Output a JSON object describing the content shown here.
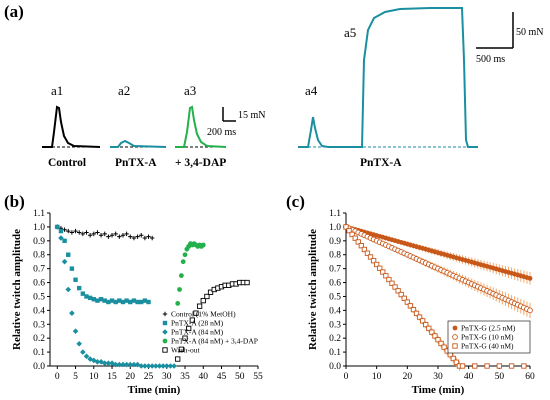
{
  "colors": {
    "control": "#000000",
    "pntxa": "#1a8fa0",
    "dap": "#22b14c",
    "washout": "#000000",
    "pntxg": "#c8581a",
    "pntxg_light": "#f2a86a"
  },
  "panel_a": {
    "label": "(a)",
    "traces": [
      {
        "id": "a1",
        "label": "a1",
        "condition": "Control",
        "color_key": "control",
        "relative_amplitude": 1.0
      },
      {
        "id": "a2",
        "label": "a2",
        "condition": "PnTX-A",
        "color_key": "pntxa",
        "relative_amplitude": 0.12
      },
      {
        "id": "a3",
        "label": "a3",
        "condition": "+ 3,4-DAP",
        "color_key": "dap",
        "relative_amplitude": 0.93
      },
      {
        "id": "a4",
        "label": "a4",
        "condition": "PnTX-A",
        "color_key": "pntxa",
        "relative_amplitude": 0.9
      },
      {
        "id": "a5",
        "label": "a5",
        "condition": "PnTX-A",
        "color_key": "pntxa",
        "relative_amplitude": 1.0
      }
    ],
    "condition_label_a45": "PnTX-A",
    "scale_small": {
      "amplitude": "15 mN",
      "time": "200 ms"
    },
    "scale_large": {
      "amplitude": "50 mN",
      "time": "500 ms"
    }
  },
  "chart_data": [
    {
      "panel": "(b)",
      "type": "scatter",
      "xlabel": "Time (min)",
      "ylabel": "Relative twitch amplitude",
      "xlim": [
        -2,
        55
      ],
      "ylim": [
        0,
        1.1
      ],
      "xticks": [
        0,
        5,
        10,
        15,
        20,
        25,
        30,
        35,
        40,
        45,
        50,
        55
      ],
      "yticks": [
        0,
        0.1,
        0.2,
        0.3,
        0.4,
        0.5,
        0.6,
        0.7,
        0.8,
        0.9,
        1.0,
        1.1
      ],
      "legend_position": "bottom-right",
      "series": [
        {
          "name": "Control (1% MetOH)",
          "marker": "plus",
          "color_key": "control",
          "x": [
            0,
            1,
            2,
            3,
            4,
            5,
            6,
            7,
            8,
            9,
            10,
            11,
            12,
            13,
            14,
            15,
            16,
            17,
            18,
            19,
            20,
            21,
            22,
            23,
            24,
            25,
            26
          ],
          "y": [
            1.0,
            0.99,
            0.98,
            0.97,
            0.96,
            0.97,
            0.96,
            0.95,
            0.96,
            0.94,
            0.95,
            0.96,
            0.94,
            0.95,
            0.93,
            0.94,
            0.95,
            0.93,
            0.94,
            0.95,
            0.93,
            0.92,
            0.93,
            0.94,
            0.92,
            0.93,
            0.92
          ]
        },
        {
          "name": "PnTX-A (28 nM)",
          "marker": "square",
          "color_key": "pntxa",
          "x": [
            0,
            1,
            2,
            3,
            4,
            5,
            6,
            7,
            8,
            9,
            10,
            11,
            12,
            13,
            14,
            15,
            16,
            17,
            18,
            19,
            20,
            21,
            22,
            23,
            24,
            25
          ],
          "y": [
            1.0,
            0.97,
            0.9,
            0.8,
            0.7,
            0.62,
            0.56,
            0.52,
            0.5,
            0.49,
            0.48,
            0.47,
            0.48,
            0.47,
            0.46,
            0.47,
            0.46,
            0.47,
            0.46,
            0.47,
            0.46,
            0.47,
            0.46,
            0.46,
            0.47,
            0.46
          ]
        },
        {
          "name": "PnTX-A (84 nM)",
          "marker": "diamond",
          "color_key": "pntxa",
          "x": [
            0,
            1,
            2,
            3,
            4,
            5,
            6,
            7,
            8,
            9,
            10,
            11,
            12,
            13,
            14,
            15,
            16,
            17,
            18,
            19,
            20,
            21,
            22,
            23,
            24,
            25,
            26,
            27,
            28,
            29,
            30,
            31,
            32
          ],
          "y": [
            1.0,
            0.92,
            0.75,
            0.55,
            0.38,
            0.25,
            0.16,
            0.1,
            0.07,
            0.05,
            0.04,
            0.03,
            0.03,
            0.02,
            0.02,
            0.02,
            0.01,
            0.01,
            0.01,
            0.01,
            0.01,
            0.01,
            0.01,
            0.0,
            0.0,
            0.0,
            0.0,
            0.0,
            0.0,
            0.0,
            0.0,
            0.0,
            0.0
          ]
        },
        {
          "name": "PnTX-A (84 nM) + 3,4-DAP",
          "marker": "circle",
          "color_key": "dap",
          "x": [
            33,
            33.5,
            34,
            34.5,
            35,
            35.5,
            36,
            36.5,
            37,
            37.5,
            38,
            38.5,
            39,
            39.5,
            40
          ],
          "y": [
            0.45,
            0.55,
            0.65,
            0.75,
            0.8,
            0.84,
            0.86,
            0.88,
            0.87,
            0.88,
            0.87,
            0.86,
            0.87,
            0.86,
            0.87
          ]
        },
        {
          "name": "Wash-out",
          "marker": "open-square",
          "color_key": "washout",
          "x": [
            33,
            34,
            35,
            36,
            37,
            38,
            39,
            40,
            41,
            42,
            43,
            44,
            45,
            46,
            47,
            48,
            49,
            50,
            51,
            52
          ],
          "y": [
            0.05,
            0.12,
            0.2,
            0.27,
            0.33,
            0.38,
            0.43,
            0.47,
            0.5,
            0.53,
            0.55,
            0.56,
            0.57,
            0.58,
            0.58,
            0.59,
            0.59,
            0.6,
            0.6,
            0.6
          ]
        }
      ]
    },
    {
      "panel": "(c)",
      "type": "scatter",
      "xlabel": "Time (min)",
      "ylabel": "Relative twitch amplitude",
      "xlim": [
        0,
        60
      ],
      "ylim": [
        0,
        1.1
      ],
      "xticks": [
        0,
        10,
        20,
        30,
        40,
        50,
        60
      ],
      "yticks": [
        0,
        0.1,
        0.2,
        0.3,
        0.4,
        0.5,
        0.6,
        0.7,
        0.8,
        0.9,
        1.0,
        1.1
      ],
      "legend_position": "bottom-right",
      "series": [
        {
          "name": "PnTX-G (2.5 nM)",
          "marker": "filled-circle",
          "color_key": "pntxg",
          "start": 1.0,
          "end": 0.63,
          "end_x": 60,
          "err": 0.04
        },
        {
          "name": "PnTX-G (10 nM)",
          "marker": "open-circle",
          "color_key": "pntxg",
          "start": 1.0,
          "end": 0.4,
          "end_x": 60,
          "err": 0.05
        },
        {
          "name": "PnTX-G (40 nM)",
          "marker": "open-square",
          "color_key": "pntxg",
          "start": 1.0,
          "end": 0.0,
          "end_x": 37,
          "err": 0.03
        }
      ]
    }
  ]
}
